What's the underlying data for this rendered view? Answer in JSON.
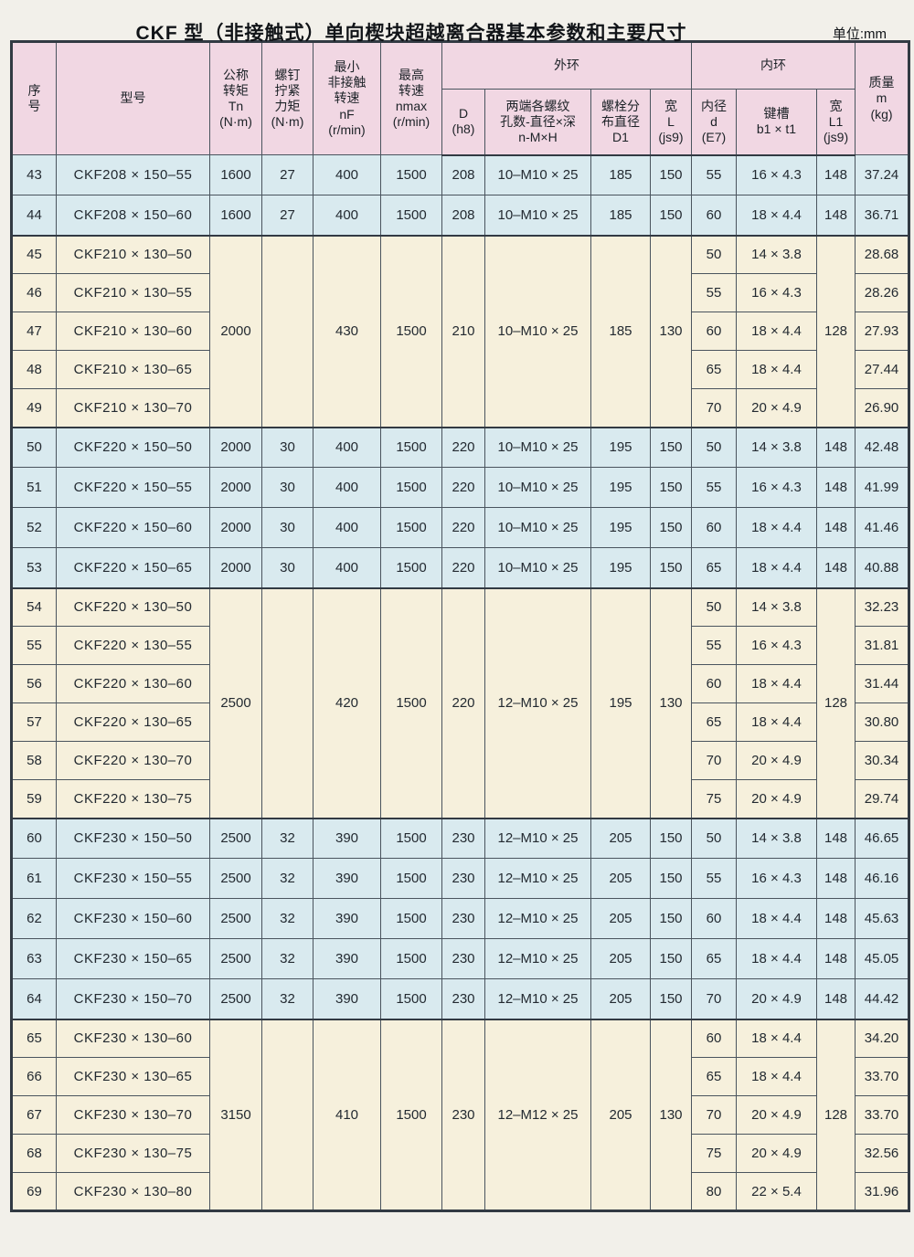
{
  "page": {
    "title": "CKF 型（非接触式）单向楔块超越离合器基本参数和主要尺寸",
    "unit": "单位:mm"
  },
  "colors": {
    "header_bg": "#f1d7e3",
    "band_blue": "#d9eaef",
    "band_cream": "#f6f0dc",
    "border": "#4a545e",
    "border_strong": "#323a43",
    "page_bg": "#f2f0ea"
  },
  "table": {
    "header": {
      "seq": "序\n号",
      "model": "型号",
      "tn": "公称\n转矩\nTn\n(N·m)",
      "screw": "螺钉\n拧紧\n力矩\n(N·m)",
      "nf": "最小\n非接触\n转速\nnF\n(r/min)",
      "nmax": "最高\n转速\nnmax\n(r/min)",
      "outer": "外环",
      "inner": "内环",
      "D": "D\n(h8)",
      "holes": "两端各螺纹\n孔数-直径×深\nn-M×H",
      "D1": "螺栓分\n布直径\nD1",
      "L": "宽\nL\n(js9)",
      "d": "内径\nd\n(E7)",
      "key": "键槽\nb1 × t1",
      "L1": "宽\nL1\n(js9)",
      "mass": "质量\nm\n(kg)"
    },
    "groups": [
      {
        "band": "blue",
        "rows": [
          {
            "no": "43",
            "model": "CKF208 × 150–55",
            "tn": "1600",
            "screw": "27",
            "nf": "400",
            "nmax": "1500",
            "D": "208",
            "holes": "10–M10 × 25",
            "D1": "185",
            "L": "150",
            "d": "55",
            "key": "16 × 4.3",
            "L1": "148",
            "m": "37.24"
          },
          {
            "no": "44",
            "model": "CKF208 × 150–60",
            "tn": "1600",
            "screw": "27",
            "nf": "400",
            "nmax": "1500",
            "D": "208",
            "holes": "10–M10 × 25",
            "D1": "185",
            "L": "150",
            "d": "60",
            "key": "18 × 4.4",
            "L1": "148",
            "m": "36.71"
          }
        ]
      },
      {
        "band": "cream",
        "shared": {
          "tn": "2000",
          "screw": "",
          "nf": "430",
          "nmax": "1500",
          "D": "210",
          "holes": "10–M10 × 25",
          "D1": "185",
          "L": "130",
          "L1": "128"
        },
        "rows": [
          {
            "no": "45",
            "model": "CKF210 × 130–50",
            "d": "50",
            "key": "14 × 3.8",
            "m": "28.68"
          },
          {
            "no": "46",
            "model": "CKF210 × 130–55",
            "d": "55",
            "key": "16 × 4.3",
            "m": "28.26"
          },
          {
            "no": "47",
            "model": "CKF210 × 130–60",
            "d": "60",
            "key": "18 × 4.4",
            "m": "27.93"
          },
          {
            "no": "48",
            "model": "CKF210 × 130–65",
            "d": "65",
            "key": "18 × 4.4",
            "m": "27.44"
          },
          {
            "no": "49",
            "model": "CKF210 × 130–70",
            "d": "70",
            "key": "20 × 4.9",
            "m": "26.90"
          }
        ]
      },
      {
        "band": "blue",
        "rows": [
          {
            "no": "50",
            "model": "CKF220 × 150–50",
            "tn": "2000",
            "screw": "30",
            "nf": "400",
            "nmax": "1500",
            "D": "220",
            "holes": "10–M10 × 25",
            "D1": "195",
            "L": "150",
            "d": "50",
            "key": "14 × 3.8",
            "L1": "148",
            "m": "42.48"
          },
          {
            "no": "51",
            "model": "CKF220 × 150–55",
            "tn": "2000",
            "screw": "30",
            "nf": "400",
            "nmax": "1500",
            "D": "220",
            "holes": "10–M10 × 25",
            "D1": "195",
            "L": "150",
            "d": "55",
            "key": "16 × 4.3",
            "L1": "148",
            "m": "41.99"
          },
          {
            "no": "52",
            "model": "CKF220 × 150–60",
            "tn": "2000",
            "screw": "30",
            "nf": "400",
            "nmax": "1500",
            "D": "220",
            "holes": "10–M10 × 25",
            "D1": "195",
            "L": "150",
            "d": "60",
            "key": "18 × 4.4",
            "L1": "148",
            "m": "41.46"
          },
          {
            "no": "53",
            "model": "CKF220 × 150–65",
            "tn": "2000",
            "screw": "30",
            "nf": "400",
            "nmax": "1500",
            "D": "220",
            "holes": "10–M10 × 25",
            "D1": "195",
            "L": "150",
            "d": "65",
            "key": "18 × 4.4",
            "L1": "148",
            "m": "40.88"
          }
        ]
      },
      {
        "band": "cream",
        "shared": {
          "tn": "2500",
          "screw": "",
          "nf": "420",
          "nmax": "1500",
          "D": "220",
          "holes": "12–M10 × 25",
          "D1": "195",
          "L": "130",
          "L1": "128"
        },
        "rows": [
          {
            "no": "54",
            "model": "CKF220 × 130–50",
            "d": "50",
            "key": "14 × 3.8",
            "m": "32.23"
          },
          {
            "no": "55",
            "model": "CKF220 × 130–55",
            "d": "55",
            "key": "16 × 4.3",
            "m": "31.81"
          },
          {
            "no": "56",
            "model": "CKF220 × 130–60",
            "d": "60",
            "key": "18 × 4.4",
            "m": "31.44"
          },
          {
            "no": "57",
            "model": "CKF220 × 130–65",
            "d": "65",
            "key": "18 × 4.4",
            "m": "30.80"
          },
          {
            "no": "58",
            "model": "CKF220 × 130–70",
            "d": "70",
            "key": "20 × 4.9",
            "m": "30.34"
          },
          {
            "no": "59",
            "model": "CKF220 × 130–75",
            "d": "75",
            "key": "20 × 4.9",
            "m": "29.74"
          }
        ]
      },
      {
        "band": "blue",
        "rows": [
          {
            "no": "60",
            "model": "CKF230 × 150–50",
            "tn": "2500",
            "screw": "32",
            "nf": "390",
            "nmax": "1500",
            "D": "230",
            "holes": "12–M10 × 25",
            "D1": "205",
            "L": "150",
            "d": "50",
            "key": "14 × 3.8",
            "L1": "148",
            "m": "46.65"
          },
          {
            "no": "61",
            "model": "CKF230 × 150–55",
            "tn": "2500",
            "screw": "32",
            "nf": "390",
            "nmax": "1500",
            "D": "230",
            "holes": "12–M10 × 25",
            "D1": "205",
            "L": "150",
            "d": "55",
            "key": "16 × 4.3",
            "L1": "148",
            "m": "46.16"
          },
          {
            "no": "62",
            "model": "CKF230 × 150–60",
            "tn": "2500",
            "screw": "32",
            "nf": "390",
            "nmax": "1500",
            "D": "230",
            "holes": "12–M10 × 25",
            "D1": "205",
            "L": "150",
            "d": "60",
            "key": "18 × 4.4",
            "L1": "148",
            "m": "45.63"
          },
          {
            "no": "63",
            "model": "CKF230 × 150–65",
            "tn": "2500",
            "screw": "32",
            "nf": "390",
            "nmax": "1500",
            "D": "230",
            "holes": "12–M10 × 25",
            "D1": "205",
            "L": "150",
            "d": "65",
            "key": "18 × 4.4",
            "L1": "148",
            "m": "45.05"
          },
          {
            "no": "64",
            "model": "CKF230 × 150–70",
            "tn": "2500",
            "screw": "32",
            "nf": "390",
            "nmax": "1500",
            "D": "230",
            "holes": "12–M10 × 25",
            "D1": "205",
            "L": "150",
            "d": "70",
            "key": "20 × 4.9",
            "L1": "148",
            "m": "44.42"
          }
        ]
      },
      {
        "band": "cream",
        "shared": {
          "tn": "3150",
          "screw": "",
          "nf": "410",
          "nmax": "1500",
          "D": "230",
          "holes": "12–M12 × 25",
          "D1": "205",
          "L": "130",
          "L1": "128"
        },
        "rows": [
          {
            "no": "65",
            "model": "CKF230 × 130–60",
            "d": "60",
            "key": "18 × 4.4",
            "m": "34.20"
          },
          {
            "no": "66",
            "model": "CKF230 × 130–65",
            "d": "65",
            "key": "18 × 4.4",
            "m": "33.70"
          },
          {
            "no": "67",
            "model": "CKF230 × 130–70",
            "d": "70",
            "key": "20 × 4.9",
            "m": "33.70"
          },
          {
            "no": "68",
            "model": "CKF230 × 130–75",
            "d": "75",
            "key": "20 × 4.9",
            "m": "32.56"
          },
          {
            "no": "69",
            "model": "CKF230 × 130–80",
            "d": "80",
            "key": "22 × 5.4",
            "m": "31.96"
          }
        ]
      }
    ]
  }
}
